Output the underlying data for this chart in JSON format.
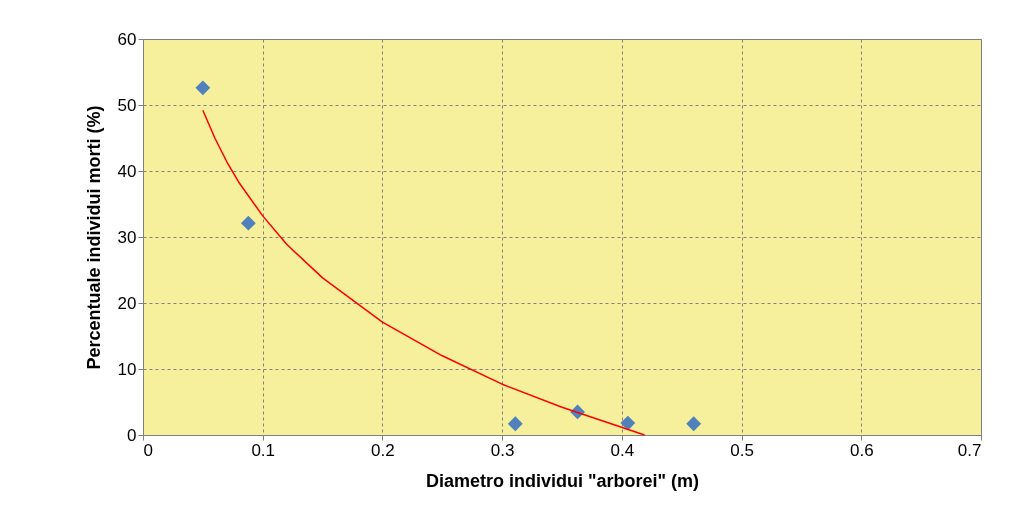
{
  "chart_data": {
    "type": "scatter",
    "xlabel": "Diametro individui \"arborei\" (m)",
    "ylabel": "Percentuale individui morti (%)",
    "xlim": [
      0,
      0.7
    ],
    "xticks": [
      0,
      0.1,
      0.2,
      0.3,
      0.4,
      0.5,
      0.6,
      0.7
    ],
    "ylim": [
      0,
      60
    ],
    "yticks": [
      0,
      10,
      20,
      30,
      40,
      50,
      60
    ],
    "grid": true,
    "marker": "diamond",
    "series": [
      {
        "color": "#4f81bd",
        "x": [
          0.05,
          0.088,
          0.311,
          0.363,
          0.405,
          0.46
        ],
        "values": [
          52.6,
          32.1,
          1.7,
          3.5,
          1.8,
          1.7
        ]
      },
      {
        "type": "line",
        "color": "#ff0000",
        "line_style": "solid",
        "marker": "none",
        "x": [
          0.05,
          0.06,
          0.07,
          0.08,
          0.1,
          0.12,
          0.15,
          0.2,
          0.25,
          0.3,
          0.35,
          0.419
        ],
        "values": [
          49.2,
          45.0,
          41.4,
          38.3,
          33.2,
          28.9,
          23.8,
          17.1,
          12.0,
          7.7,
          4.2,
          0
        ]
      }
    ]
  }
}
